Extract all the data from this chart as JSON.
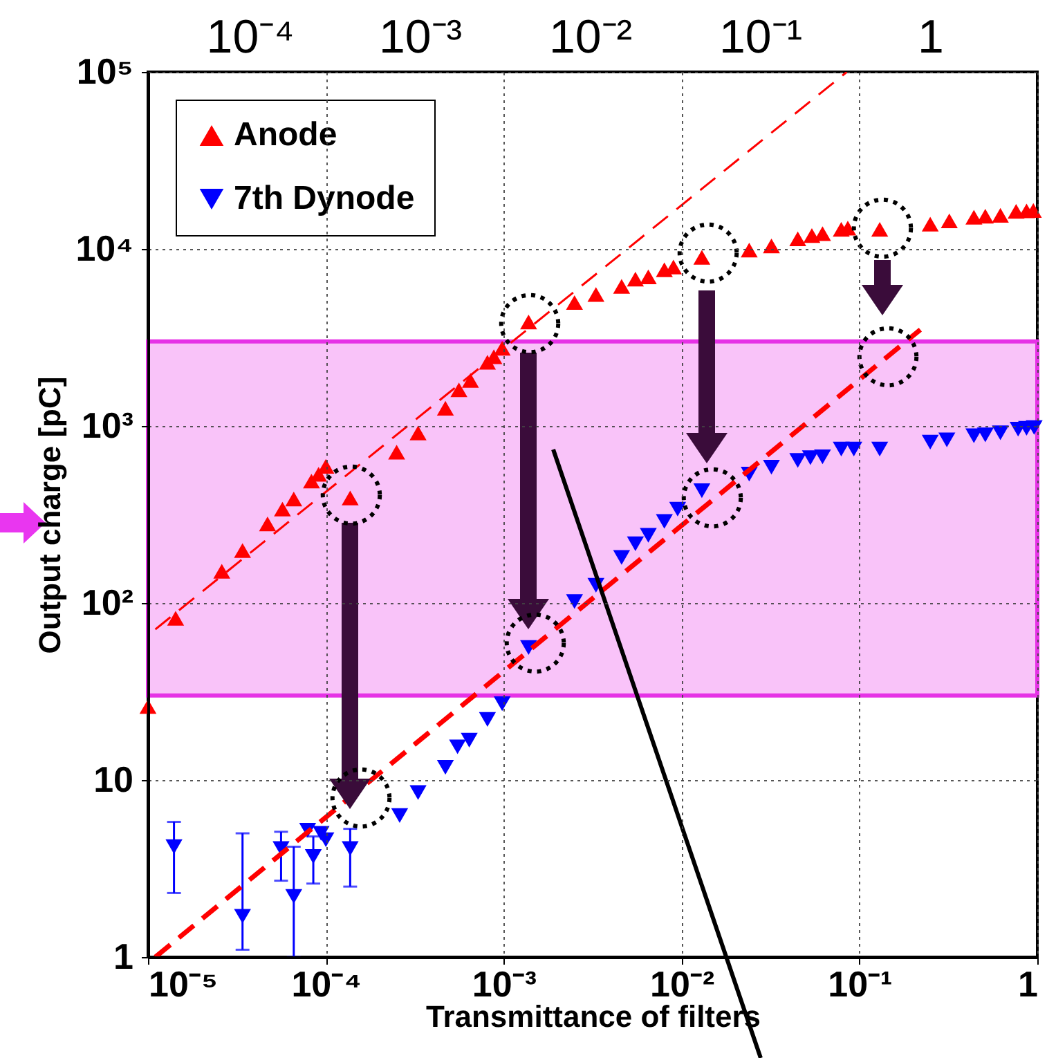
{
  "chart_data": {
    "type": "scatter",
    "xlabel": "Transmittance of filters",
    "ylabel": "Output charge [pC]",
    "log": "xy",
    "xlim": [
      1e-05,
      1
    ],
    "ylim": [
      1,
      100000
    ],
    "xticks": [
      {
        "value": 1e-05,
        "label": "10⁻⁵"
      },
      {
        "value": 0.0001,
        "label": "10⁻⁴"
      },
      {
        "value": 0.001,
        "label": "10⁻³"
      },
      {
        "value": 0.01,
        "label": "10⁻²"
      },
      {
        "value": 0.1,
        "label": "10⁻¹"
      },
      1
    ],
    "yticks": [
      1,
      10,
      {
        "value": 100,
        "label": "10²"
      },
      {
        "value": 1000,
        "label": "10³"
      },
      {
        "value": 10000,
        "label": "10⁴"
      },
      {
        "value": 100000,
        "label": "10⁵"
      }
    ],
    "annotations": [
      "10⁻⁴",
      "10⁻³",
      "10⁻²",
      "10⁻¹",
      "1"
    ],
    "grid": true,
    "legend": "top left",
    "bands": [
      {
        "axis": "y",
        "from": 30,
        "to": 3000,
        "color": "#f9c3f9"
      }
    ],
    "series": [
      {
        "name": "Anode",
        "marker": "triangle",
        "color": "#ff0000",
        "x": [
          1e-05,
          1.43e-05,
          2.6e-05,
          3.4e-05,
          4.7e-05,
          5.7e-05,
          6.6e-05,
          8.3e-05,
          9.1e-05,
          0.0001,
          0.000137,
          0.00025,
          0.00033,
          0.00047,
          0.00056,
          0.00065,
          0.00081,
          0.00088,
          0.00098,
          0.00138,
          0.0025,
          0.0033,
          0.0046,
          0.0055,
          0.0065,
          0.008,
          0.009,
          0.013,
          0.024,
          0.032,
          0.045,
          0.054,
          0.062,
          0.079,
          0.086,
          0.13,
          0.25,
          0.32,
          0.44,
          0.51,
          0.62,
          0.76,
          0.87,
          0.95
        ],
        "values": [
          26,
          82,
          151,
          198,
          280,
          339,
          387,
          488,
          533,
          592,
          392,
          711,
          913,
          1260,
          1600,
          1810,
          2290,
          2460,
          2750,
          3870,
          4980,
          5530,
          6150,
          6750,
          6950,
          7620,
          7900,
          8960,
          9850,
          10400,
          11400,
          11900,
          12200,
          12900,
          13100,
          12900,
          13800,
          14400,
          15100,
          15300,
          15500,
          16300,
          16400,
          16500
        ]
      },
      {
        "name": "7th Dynode",
        "marker": "triangle-down",
        "color": "#0000ff",
        "x": [
          1.4e-05,
          3.4e-05,
          5.6e-05,
          6.6e-05,
          7.9e-05,
          8.5e-05,
          9.4e-05,
          0.0001,
          0.000137,
          0.00026,
          0.00033,
          0.00047,
          0.00055,
          0.00064,
          0.00081,
          0.00098,
          0.00138,
          0.0025,
          0.0033,
          0.0046,
          0.0055,
          0.0065,
          0.008,
          0.0095,
          0.013,
          0.024,
          0.032,
          0.045,
          0.053,
          0.062,
          0.079,
          0.093,
          0.13,
          0.25,
          0.31,
          0.44,
          0.51,
          0.62,
          0.78,
          0.87,
          0.96
        ],
        "values": [
          4.2,
          1.7,
          4.1,
          2.2,
          5.2,
          3.7,
          5.0,
          4.6,
          4.1,
          6.3,
          8.5,
          11.8,
          15.4,
          16.8,
          22,
          27,
          56,
          102,
          126,
          181,
          216,
          241,
          289,
          339,
          431,
          535,
          585,
          638,
          662,
          670,
          740,
          740,
          740,
          810,
          835,
          880,
          890,
          915,
          960,
          970,
          980
        ],
        "errors": [
          [
            2.3,
            5.8
          ],
          [
            1.1,
            5.0
          ],
          [
            2.7,
            5.1
          ],
          [
            1.0,
            4.2
          ],
          null,
          [
            2.6,
            4.8
          ],
          null,
          null,
          [
            2.5,
            5.3
          ],
          null,
          null,
          null,
          null,
          null,
          null,
          null,
          null,
          null,
          null,
          null,
          null,
          null,
          null,
          null,
          null,
          null,
          null,
          null,
          null,
          null,
          null,
          null,
          null,
          null,
          null,
          null,
          null,
          null,
          null,
          null,
          null
        ]
      },
      {
        "type": "line",
        "color": "#ff0000",
        "line_style": "dashed",
        "x": [
          1.1e-05,
          0.085
        ],
        "values": [
          71,
          100000
        ]
      },
      {
        "type": "line",
        "color": "#ff0000",
        "line_style": "dashed",
        "x": [
          1.1e-05,
          0.22
        ],
        "values": [
          1,
          3500
        ]
      }
    ]
  }
}
